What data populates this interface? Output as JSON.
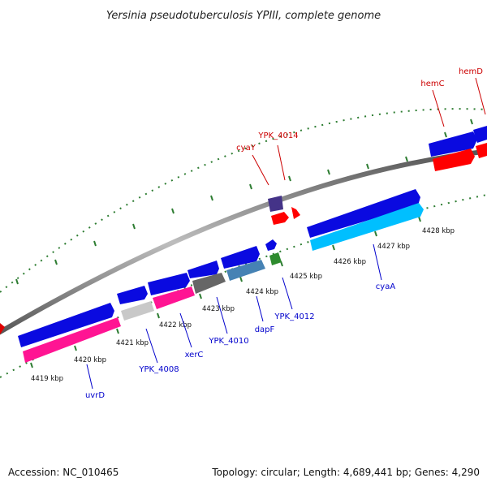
{
  "title": "Yersinia pseudotuberculosis YPIII, complete genome",
  "footer": {
    "accession": "Accession: NC_010465",
    "summary": "Topology: circular; Length: 4,689,441 bp; Genes: 4,290"
  },
  "colors": {
    "backbone": "#8a8a8a",
    "tick": "#2e7d32",
    "label_forward": "#cc0000",
    "label_reverse": "#0000cc"
  },
  "tick_labels": [
    "4419 kbp",
    "4420 kbp",
    "4421 kbp",
    "4422 kbp",
    "4423 kbp",
    "4424 kbp",
    "4425 kbp",
    "4426 kbp",
    "4427 kbp",
    "4428 kbp"
  ],
  "genes": [
    {
      "id": "uvrD",
      "label": "uvrD",
      "strand": "reverse",
      "color": "#0a0ae0"
    },
    {
      "id": "YPK_4008",
      "label": "YPK_4008",
      "strand": "reverse",
      "color": "#0a0ae0"
    },
    {
      "id": "xerC",
      "label": "xerC",
      "strand": "reverse",
      "color": "#0a0ae0"
    },
    {
      "id": "YPK_4010",
      "label": "YPK_4010",
      "strand": "reverse",
      "color": "#0a0ae0"
    },
    {
      "id": "dapF",
      "label": "dapF",
      "strand": "reverse",
      "color": "#0a0ae0"
    },
    {
      "id": "YPK_4012",
      "label": "YPK_4012",
      "strand": "reverse",
      "color": "#0a0ae0"
    },
    {
      "id": "cyaA",
      "label": "cyaA",
      "strand": "forward",
      "color": "#0a0ae0"
    },
    {
      "id": "cyaY",
      "label": "cyaY",
      "strand": "reverse",
      "color": "#443388"
    },
    {
      "id": "YPK_4014",
      "label": "YPK_4014",
      "strand": "reverse",
      "color": "#e00000"
    },
    {
      "id": "hemC",
      "label": "hemC",
      "strand": "reverse",
      "color": "#0a0ae0"
    },
    {
      "id": "hemD",
      "label": "hemD",
      "strand": "reverse",
      "color": "#0a0ae0"
    }
  ],
  "cog_colors": [
    "#ff1493",
    "#c8c8c8",
    "#ff1493",
    "#666666",
    "#4682b4",
    "#2e8b2e",
    "#00bfff",
    "#ff0000"
  ]
}
